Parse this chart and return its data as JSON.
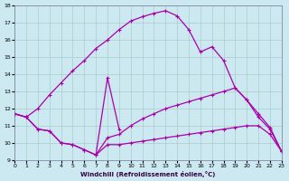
{
  "xlabel": "Windchill (Refroidissement éolien,°C)",
  "bg_color": "#cce8f0",
  "grid_color": "#aacccc",
  "line_color": "#aa00aa",
  "xlim": [
    0,
    23
  ],
  "ylim": [
    9,
    18
  ],
  "yticks": [
    9,
    10,
    11,
    12,
    13,
    14,
    15,
    16,
    17,
    18
  ],
  "xticks": [
    0,
    1,
    2,
    3,
    4,
    5,
    6,
    7,
    8,
    9,
    10,
    11,
    12,
    13,
    14,
    15,
    16,
    17,
    18,
    19,
    20,
    21,
    22,
    23
  ],
  "curve1_x": [
    0,
    1,
    2,
    3,
    4,
    5,
    6,
    7,
    8,
    9,
    10,
    11,
    12,
    13,
    14,
    15,
    16,
    17,
    18,
    19,
    20,
    21,
    22,
    23
  ],
  "curve1_y": [
    11.7,
    11.5,
    12.0,
    12.8,
    13.5,
    14.2,
    14.8,
    15.5,
    16.0,
    16.6,
    17.1,
    17.35,
    17.55,
    17.7,
    17.4,
    16.6,
    15.3,
    15.6,
    14.8,
    13.2,
    12.5,
    11.5,
    10.8,
    9.5
  ],
  "curve2_x": [
    0,
    1,
    2,
    3,
    4,
    5,
    6,
    7,
    8,
    9,
    10,
    11,
    12,
    13,
    14,
    15,
    16,
    17,
    18,
    19,
    20,
    21,
    22,
    23
  ],
  "curve2_y": [
    11.7,
    11.5,
    10.8,
    10.7,
    10.0,
    9.9,
    9.6,
    9.3,
    10.3,
    10.5,
    11.0,
    11.4,
    11.7,
    12.0,
    12.2,
    12.4,
    12.6,
    12.8,
    13.0,
    13.2,
    12.5,
    11.7,
    10.9,
    9.5
  ],
  "curve3_x": [
    0,
    1,
    2,
    3,
    4,
    5,
    6,
    7,
    8,
    9,
    10,
    11,
    12,
    13,
    14,
    15,
    16,
    17,
    18,
    19,
    20,
    21,
    22,
    23
  ],
  "curve3_y": [
    11.7,
    11.5,
    10.8,
    10.7,
    10.0,
    9.9,
    9.6,
    9.3,
    9.9,
    9.9,
    10.0,
    10.1,
    10.2,
    10.3,
    10.4,
    10.5,
    10.6,
    10.7,
    10.8,
    10.9,
    11.0,
    11.0,
    10.5,
    9.5
  ],
  "curve4_x": [
    7,
    8,
    9
  ],
  "curve4_y": [
    9.3,
    13.8,
    10.8
  ]
}
